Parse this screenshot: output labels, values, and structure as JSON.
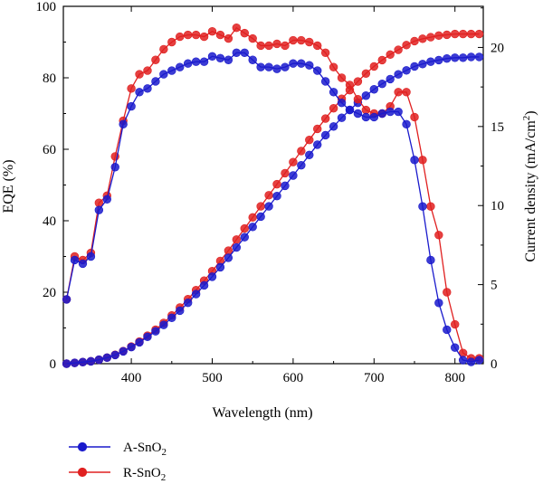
{
  "chart_data": {
    "type": "line",
    "title": "",
    "xlabel": "Wavelength (nm)",
    "ylabel_left": "EQE (%)",
    "ylabel_right": "Current density (mA/cm²)",
    "ylabel_right_parts": {
      "prefix": "Current density (mA/cm",
      "sup": "2",
      "suffix": ")"
    },
    "xlim": [
      316,
      835
    ],
    "ylim_left": [
      0,
      100
    ],
    "ylim_right": [
      0,
      22.6
    ],
    "x_ticks": [
      "400",
      "500",
      "600",
      "700",
      "800"
    ],
    "y_left_ticks": [
      "0",
      "20",
      "40",
      "60",
      "80",
      "100"
    ],
    "y_right_ticks": [
      "0",
      "5",
      "10",
      "15",
      "20"
    ],
    "grid": false,
    "legend_position": "bottom-left, below plot",
    "x": [
      320,
      330,
      340,
      350,
      360,
      370,
      380,
      390,
      400,
      410,
      420,
      430,
      440,
      450,
      460,
      470,
      480,
      490,
      500,
      510,
      520,
      530,
      540,
      550,
      560,
      570,
      580,
      590,
      600,
      610,
      620,
      630,
      640,
      650,
      660,
      670,
      680,
      690,
      700,
      710,
      720,
      730,
      740,
      750,
      760,
      770,
      780,
      790,
      800,
      810,
      820,
      830
    ],
    "series": [
      {
        "name": "A-SnO",
        "name_sub": "2",
        "color": "#1a1acc",
        "eqe": [
          18,
          29,
          28,
          30,
          43,
          46,
          55,
          67,
          72,
          76,
          77,
          79,
          81,
          82,
          83,
          84,
          84.5,
          84.5,
          86,
          85.5,
          85,
          87,
          87,
          85,
          83,
          83,
          82.5,
          83,
          84,
          84,
          83.5,
          82,
          79,
          76,
          73,
          71,
          70,
          69,
          69,
          70,
          70.5,
          70.5,
          67,
          57,
          44,
          29,
          17,
          9.5,
          4.5,
          1,
          0.5,
          1
        ],
        "jsc": [
          0,
          0.05,
          0.1,
          0.15,
          0.25,
          0.38,
          0.55,
          0.78,
          1.05,
          1.35,
          1.7,
          2.05,
          2.45,
          2.9,
          3.35,
          3.85,
          4.4,
          4.95,
          5.5,
          6.1,
          6.7,
          7.35,
          8,
          8.65,
          9.3,
          9.95,
          10.6,
          11.25,
          11.9,
          12.55,
          13.2,
          13.85,
          14.45,
          15,
          15.55,
          16.05,
          16.5,
          16.95,
          17.35,
          17.7,
          18,
          18.3,
          18.55,
          18.8,
          18.95,
          19.1,
          19.2,
          19.3,
          19.35,
          19.35,
          19.4,
          19.4
        ]
      },
      {
        "name": "R-SnO",
        "name_sub": "2",
        "color": "#e02020",
        "eqe": [
          18,
          30,
          29,
          31,
          45,
          47,
          58,
          68,
          77,
          81,
          82,
          85,
          88,
          90,
          91.5,
          92,
          92,
          91.5,
          93,
          92,
          91,
          94,
          92.5,
          91,
          89,
          89,
          89.5,
          89,
          90.5,
          90.5,
          90,
          89,
          87,
          83,
          80,
          78,
          74,
          71,
          70,
          70,
          72,
          76,
          76,
          69,
          57,
          44,
          36,
          20,
          11,
          3,
          1.5,
          1.5
        ],
        "jsc": [
          0,
          0.05,
          0.1,
          0.15,
          0.25,
          0.38,
          0.56,
          0.8,
          1.08,
          1.4,
          1.77,
          2.15,
          2.58,
          3.05,
          3.55,
          4.08,
          4.65,
          5.25,
          5.85,
          6.5,
          7.15,
          7.85,
          8.55,
          9.25,
          9.95,
          10.65,
          11.35,
          12.05,
          12.75,
          13.45,
          14.15,
          14.85,
          15.5,
          16.15,
          16.75,
          17.3,
          17.85,
          18.35,
          18.8,
          19.2,
          19.55,
          19.85,
          20.15,
          20.4,
          20.55,
          20.65,
          20.75,
          20.8,
          20.85,
          20.85,
          20.85,
          20.85
        ]
      }
    ]
  }
}
